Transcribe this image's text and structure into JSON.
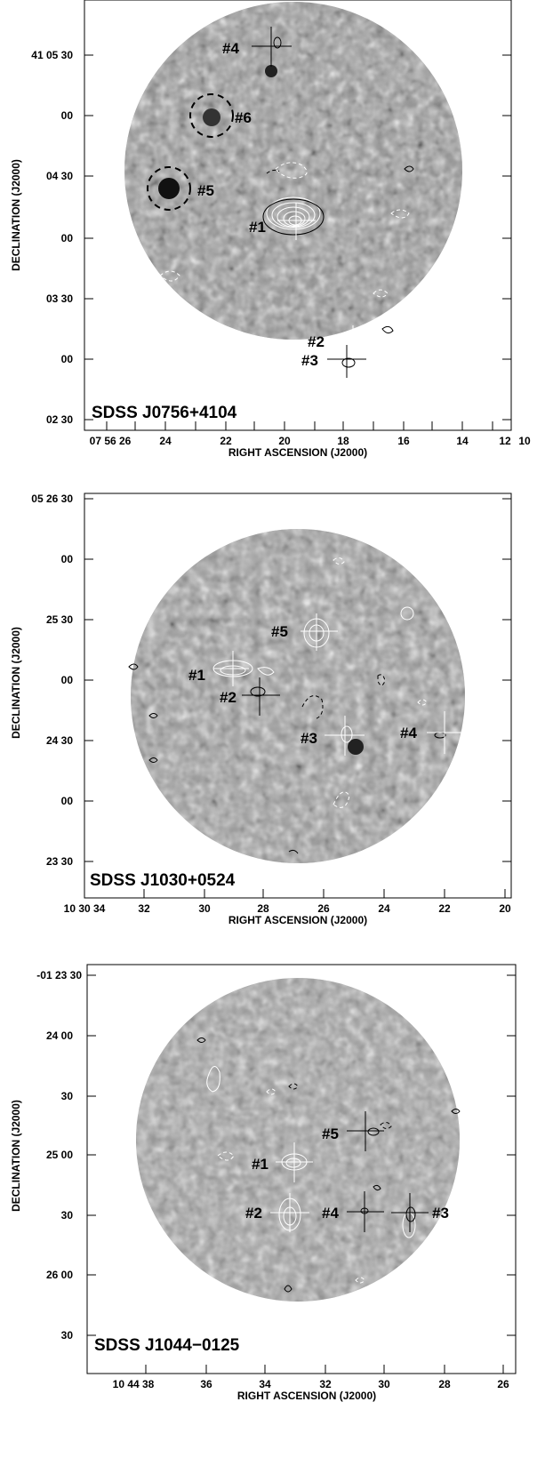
{
  "panels": [
    {
      "source_name": "SDSS J0756+4104",
      "xlabel": "RIGHT ASCENSION (J2000)",
      "ylabel": "DECLINATION (J2000)",
      "xticks": [
        "07 56 26",
        "24",
        "22",
        "20",
        "18",
        "16",
        "14",
        "12",
        "10"
      ],
      "yticks": [
        "41 05 30",
        "00",
        "04 30",
        "00",
        "03 30",
        "00",
        "02 30"
      ],
      "sources": [
        {
          "label": "#1"
        },
        {
          "label": "#2"
        },
        {
          "label": "#3"
        },
        {
          "label": "#4"
        },
        {
          "label": "#5"
        },
        {
          "label": "#6"
        }
      ]
    },
    {
      "source_name": "SDSS J1030+0524",
      "xlabel": "RIGHT ASCENSION (J2000)",
      "ylabel": "DECLINATION (J2000)",
      "xticks": [
        "10 30 34",
        "32",
        "30",
        "28",
        "26",
        "24",
        "22",
        "20"
      ],
      "yticks": [
        "05 26 30",
        "00",
        "25 30",
        "00",
        "24 30",
        "00",
        "23 30"
      ],
      "sources": [
        {
          "label": "#1"
        },
        {
          "label": "#2"
        },
        {
          "label": "#3"
        },
        {
          "label": "#4"
        },
        {
          "label": "#5"
        }
      ]
    },
    {
      "source_name": "SDSS J1044−0125",
      "xlabel": "RIGHT ASCENSION (J2000)",
      "ylabel": "DECLINATION (J2000)",
      "xticks": [
        "10 44 38",
        "36",
        "34",
        "32",
        "30",
        "28",
        "26"
      ],
      "yticks": [
        "-01 23 30",
        "24 00",
        "30",
        "25 00",
        "30",
        "26 00",
        "30"
      ],
      "sources": [
        {
          "label": "#1"
        },
        {
          "label": "#2"
        },
        {
          "label": "#3"
        },
        {
          "label": "#4"
        },
        {
          "label": "#5"
        }
      ]
    }
  ]
}
